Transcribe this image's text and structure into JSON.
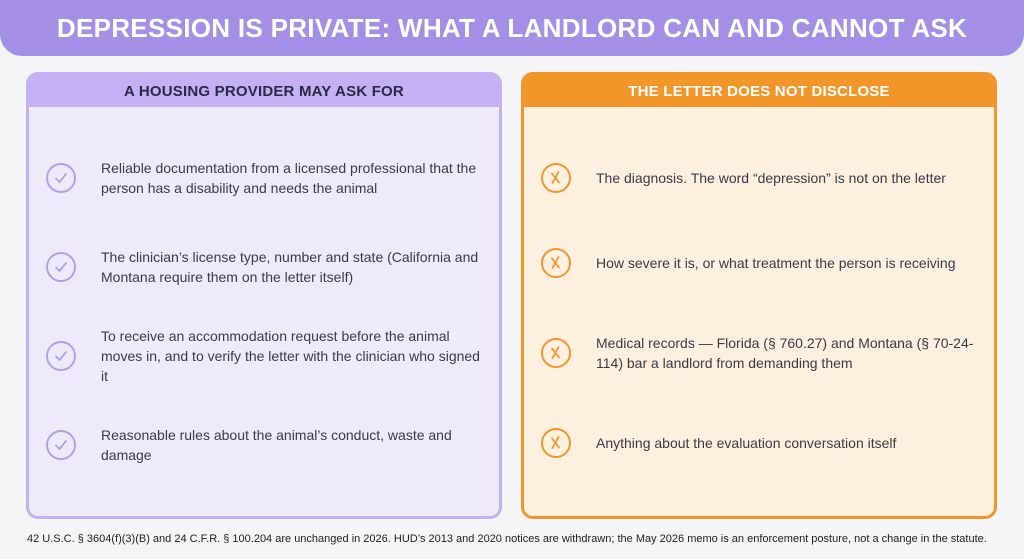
{
  "header": {
    "title": "DEPRESSION IS PRIVATE: WHAT A LANDLORD CAN AND CANNOT ASK"
  },
  "left_panel": {
    "title": "A HOUSING PROVIDER MAY ASK FOR",
    "items": [
      "Reliable documentation from a licensed professional that the person has a disability and needs the animal",
      "The clinician’s license type, number and state (California and Montana require them on the letter itself)",
      "To receive an accommodation request before the animal moves in, and to verify the letter with the clinician who signed it",
      "Reasonable rules about the animal’s conduct, waste and damage"
    ]
  },
  "right_panel": {
    "title": "THE LETTER DOES NOT DISCLOSE",
    "items": [
      "The diagnosis. The word “depression” is not on the letter",
      "How severe it is, or what treatment the person is receiving",
      "Medical records — Florida (§ 760.27) and Montana (§ 70-24-114) bar a landlord from demanding them",
      "Anything about the evaluation conversation itself"
    ]
  },
  "footnote": "42 U.S.C. § 3604(f)(3)(B) and 24 C.F.R. § 100.204 are unchanged in 2026. HUD’s 2013 and 2020 notices are withdrawn; the May 2026 memo is an enforcement posture, not a change in the statute."
}
